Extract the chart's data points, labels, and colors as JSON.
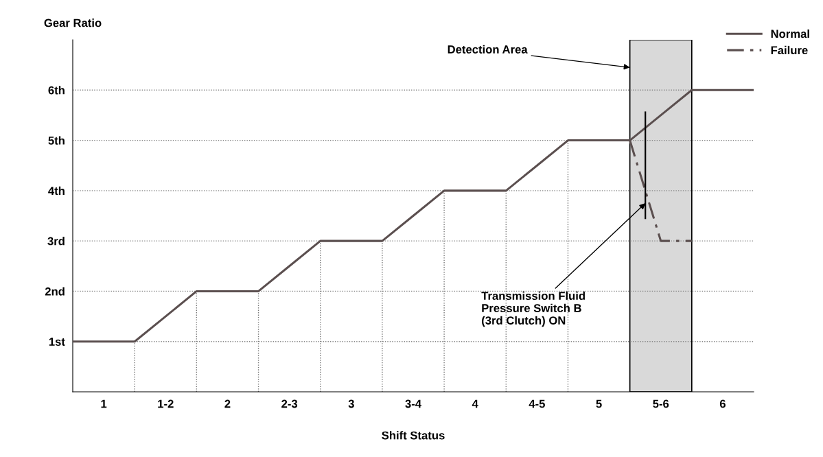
{
  "chart_data": {
    "type": "line",
    "xlabel": "Shift Status",
    "ylabel": "Gear Ratio",
    "categories": [
      null,
      "1",
      null,
      "1-2",
      null,
      "2",
      null,
      "2-3",
      null,
      "3",
      null,
      "3-4",
      null,
      "4",
      null,
      "4-5",
      null,
      "5",
      null,
      "5-6",
      null,
      "6",
      null
    ],
    "ylim": [
      0,
      7
    ],
    "yticks": [
      {
        "value": 1,
        "label": "1st"
      },
      {
        "value": 2,
        "label": "2nd"
      },
      {
        "value": 3,
        "label": "3rd"
      },
      {
        "value": 4,
        "label": "4th"
      },
      {
        "value": 5,
        "label": "5th"
      },
      {
        "value": 6,
        "label": "6th"
      }
    ],
    "grid": "y",
    "legend": "top right",
    "series": [
      {
        "name": "Normal",
        "color": "#5b4f4f",
        "line_style": "solid",
        "values": [
          1,
          1,
          1,
          1.5,
          2,
          2,
          2,
          2.5,
          3,
          3,
          3,
          3.5,
          4,
          4,
          4,
          4.5,
          5,
          5,
          5,
          5.5,
          6,
          6,
          6
        ],
        "errors": [
          null,
          null,
          [
            0,
            1
          ],
          null,
          [
            0,
            2
          ],
          null,
          [
            0,
            2
          ],
          null,
          [
            0,
            3
          ],
          null,
          [
            0,
            3
          ],
          null,
          [
            0,
            4
          ],
          null,
          [
            0,
            4
          ],
          null,
          [
            0,
            5
          ],
          null,
          null,
          null,
          null,
          null,
          null
        ]
      },
      {
        "name": "Failure",
        "color": "#5b4f4f",
        "line_style": "dashdot",
        "values": [
          null,
          null,
          null,
          null,
          null,
          null,
          null,
          null,
          null,
          null,
          null,
          null,
          null,
          null,
          null,
          null,
          null,
          null,
          5,
          3,
          3,
          null,
          null
        ]
      }
    ],
    "annotations": [
      "Detection Area",
      "Transmission Fluid\nPressure Switch B\n(3rd Clutch) ON"
    ]
  }
}
